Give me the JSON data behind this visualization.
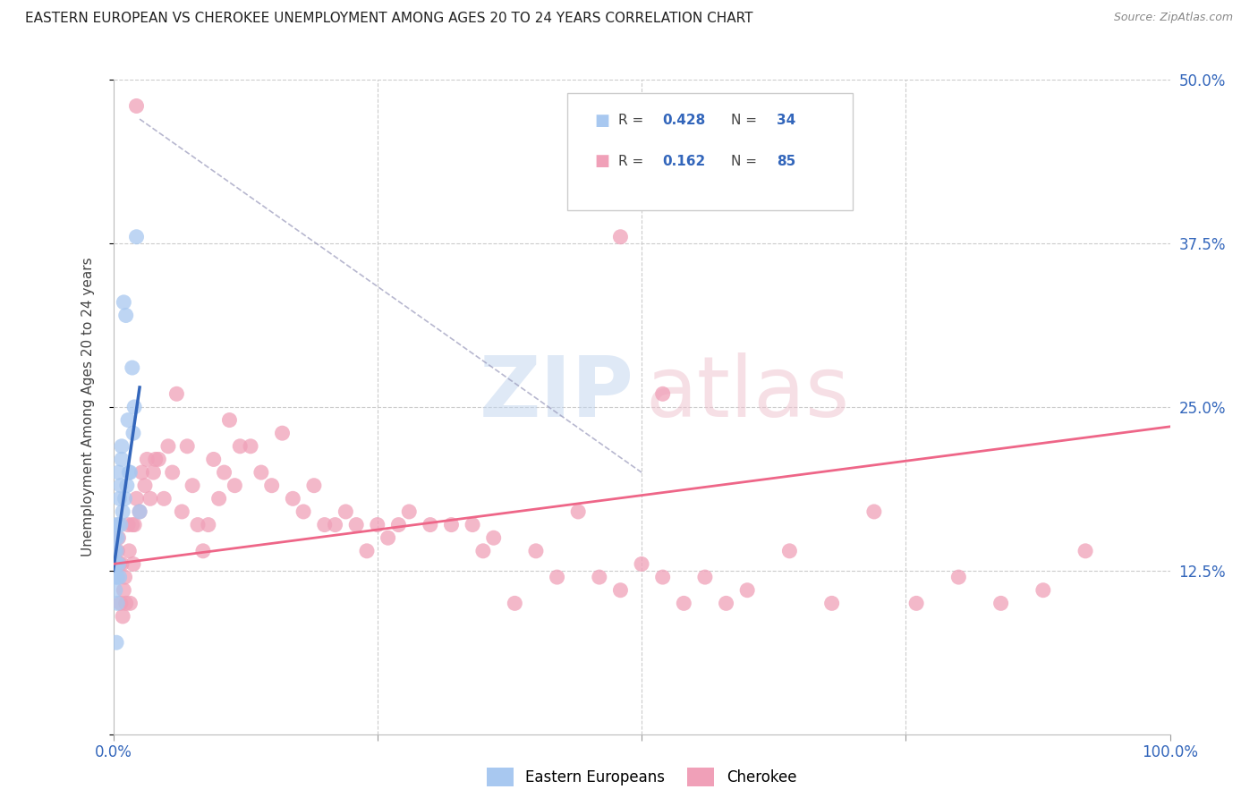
{
  "title": "EASTERN EUROPEAN VS CHEROKEE UNEMPLOYMENT AMONG AGES 20 TO 24 YEARS CORRELATION CHART",
  "source": "Source: ZipAtlas.com",
  "ylabel": "Unemployment Among Ages 20 to 24 years",
  "xlim": [
    0,
    1.0
  ],
  "ylim": [
    0,
    0.5
  ],
  "blue_color": "#A8C8F0",
  "pink_color": "#F0A0B8",
  "blue_line_color": "#3366BB",
  "pink_line_color": "#EE6688",
  "dashed_line_color": "#9999BB",
  "eastern_european_x": [
    0.001,
    0.001,
    0.002,
    0.002,
    0.002,
    0.003,
    0.003,
    0.003,
    0.003,
    0.004,
    0.004,
    0.004,
    0.005,
    0.005,
    0.005,
    0.006,
    0.006,
    0.007,
    0.007,
    0.008,
    0.008,
    0.009,
    0.01,
    0.011,
    0.012,
    0.013,
    0.014,
    0.015,
    0.016,
    0.018,
    0.019,
    0.02,
    0.022,
    0.025
  ],
  "eastern_european_y": [
    0.14,
    0.13,
    0.15,
    0.12,
    0.11,
    0.16,
    0.14,
    0.13,
    0.07,
    0.15,
    0.12,
    0.1,
    0.16,
    0.13,
    0.2,
    0.18,
    0.12,
    0.19,
    0.16,
    0.22,
    0.21,
    0.17,
    0.33,
    0.18,
    0.32,
    0.19,
    0.24,
    0.2,
    0.2,
    0.28,
    0.23,
    0.25,
    0.38,
    0.17
  ],
  "cherokee_x": [
    0.002,
    0.004,
    0.005,
    0.006,
    0.007,
    0.008,
    0.009,
    0.01,
    0.011,
    0.012,
    0.014,
    0.015,
    0.016,
    0.018,
    0.019,
    0.02,
    0.022,
    0.025,
    0.027,
    0.03,
    0.032,
    0.035,
    0.038,
    0.04,
    0.043,
    0.048,
    0.052,
    0.056,
    0.06,
    0.065,
    0.07,
    0.075,
    0.08,
    0.085,
    0.09,
    0.095,
    0.1,
    0.105,
    0.11,
    0.115,
    0.12,
    0.13,
    0.14,
    0.15,
    0.16,
    0.17,
    0.18,
    0.19,
    0.2,
    0.21,
    0.22,
    0.23,
    0.24,
    0.25,
    0.26,
    0.27,
    0.28,
    0.3,
    0.32,
    0.34,
    0.35,
    0.36,
    0.38,
    0.4,
    0.42,
    0.44,
    0.46,
    0.48,
    0.5,
    0.52,
    0.54,
    0.56,
    0.58,
    0.6,
    0.64,
    0.68,
    0.72,
    0.76,
    0.8,
    0.84,
    0.88,
    0.92,
    0.48,
    0.52,
    0.022
  ],
  "cherokee_y": [
    0.14,
    0.14,
    0.15,
    0.13,
    0.1,
    0.13,
    0.09,
    0.11,
    0.12,
    0.1,
    0.16,
    0.14,
    0.1,
    0.16,
    0.13,
    0.16,
    0.18,
    0.17,
    0.2,
    0.19,
    0.21,
    0.18,
    0.2,
    0.21,
    0.21,
    0.18,
    0.22,
    0.2,
    0.26,
    0.17,
    0.22,
    0.19,
    0.16,
    0.14,
    0.16,
    0.21,
    0.18,
    0.2,
    0.24,
    0.19,
    0.22,
    0.22,
    0.2,
    0.19,
    0.23,
    0.18,
    0.17,
    0.19,
    0.16,
    0.16,
    0.17,
    0.16,
    0.14,
    0.16,
    0.15,
    0.16,
    0.17,
    0.16,
    0.16,
    0.16,
    0.14,
    0.15,
    0.1,
    0.14,
    0.12,
    0.17,
    0.12,
    0.11,
    0.13,
    0.12,
    0.1,
    0.12,
    0.1,
    0.11,
    0.14,
    0.1,
    0.17,
    0.1,
    0.12,
    0.1,
    0.11,
    0.14,
    0.38,
    0.26,
    0.48
  ],
  "ee_line_x": [
    0.0,
    0.025
  ],
  "ee_line_y_start": 0.12,
  "ch_line_x": [
    0.0,
    1.0
  ],
  "ch_line_y_start": 0.13,
  "ch_line_y_end": 0.23
}
